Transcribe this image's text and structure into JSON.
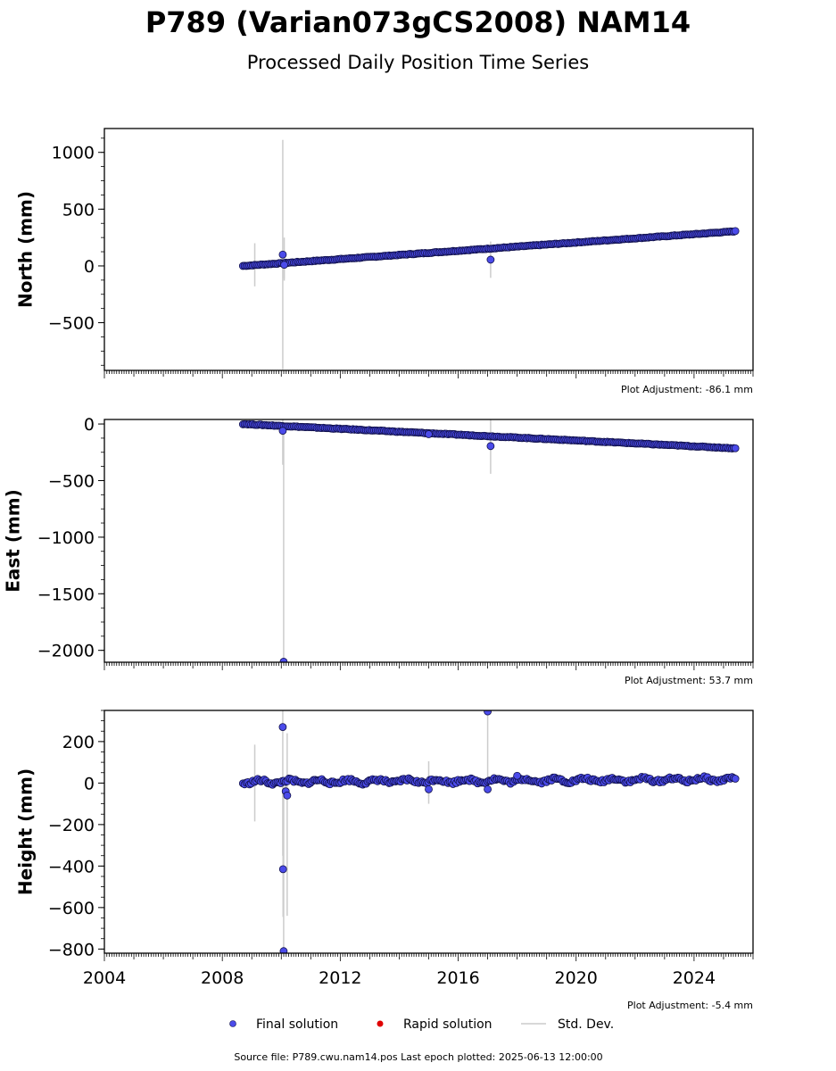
{
  "title": "P789 (Varian073gCS2008) NAM14",
  "subtitle": "Processed Daily Position Time Series",
  "source_text": "Source file: P789.cwu.nam14.pos  Last epoch plotted: 2025-06-13 12:00:00",
  "legend": {
    "final": "Final solution",
    "rapid": "Rapid solution",
    "std": "Std. Dev."
  },
  "colors": {
    "final_fill": "#4b4bea",
    "final_edge": "#10104a",
    "rapid": "#e00000",
    "stddev": "#cccccc"
  },
  "chart_data": [
    {
      "type": "scatter",
      "ylabel": "North (mm)",
      "adjustment": "Plot Adjustment: -86.1 mm",
      "xlim": [
        2004,
        2026
      ],
      "ylim": [
        -920,
        1210
      ],
      "yticks": [
        1000,
        500,
        0,
        -500
      ],
      "ytick_labels": [
        "1000",
        "500",
        "0",
        "−500"
      ],
      "trend": {
        "x": [
          2008.7,
          2025.4
        ],
        "y": [
          0,
          305
        ]
      },
      "outliers": [
        {
          "x": 2010.05,
          "y": 100,
          "err": 1010
        },
        {
          "x": 2010.1,
          "y": 10,
          "err": 120
        },
        {
          "x": 2017.1,
          "y": 55,
          "err": 160
        }
      ],
      "stddev_bars": [
        {
          "x": 2009.1,
          "y": 10,
          "err": 190
        },
        {
          "x": 2010.1,
          "y": 60,
          "err": 190
        }
      ]
    },
    {
      "type": "scatter",
      "ylabel": "East (mm)",
      "adjustment": "Plot Adjustment: 53.7 mm",
      "xlim": [
        2004,
        2026
      ],
      "ylim": [
        -2105,
        40
      ],
      "yticks": [
        0,
        -500,
        -1000,
        -1500,
        -2000
      ],
      "ytick_labels": [
        "0",
        "−500",
        "−1000",
        "−1500",
        "−2000"
      ],
      "trend": {
        "x": [
          2008.7,
          2025.4
        ],
        "y": [
          0,
          -215
        ]
      },
      "outliers": [
        {
          "x": 2010.05,
          "y": -60,
          "err": 300
        },
        {
          "x": 2010.08,
          "y": -2100,
          "err": 2100
        },
        {
          "x": 2015.0,
          "y": -90,
          "err": 20
        },
        {
          "x": 2017.1,
          "y": -195,
          "err": 245
        }
      ],
      "stddev_bars": []
    },
    {
      "type": "scatter",
      "ylabel": "Height (mm)",
      "adjustment": "Plot Adjustment: -5.4 mm",
      "xlim": [
        2004,
        2026
      ],
      "ylim": [
        -820,
        350
      ],
      "yticks": [
        200,
        0,
        -200,
        -400,
        -600,
        -800
      ],
      "ytick_labels": [
        "200",
        "0",
        "−200",
        "−400",
        "−600",
        "−800"
      ],
      "xticks": [
        2004,
        2008,
        2012,
        2016,
        2020,
        2024
      ],
      "xtick_labels": [
        "2004",
        "2008",
        "2012",
        "2016",
        "2020",
        "2024"
      ],
      "trend": {
        "x": [
          2008.7,
          2025.4
        ],
        "y": [
          5,
          18
        ]
      },
      "outliers": [
        {
          "x": 2010.05,
          "y": 270,
          "err": 620
        },
        {
          "x": 2010.06,
          "y": -415,
          "err": 230
        },
        {
          "x": 2010.08,
          "y": -810,
          "err": 820
        },
        {
          "x": 2010.15,
          "y": -40,
          "err": 30
        },
        {
          "x": 2010.2,
          "y": -60,
          "err": 25
        },
        {
          "x": 2015.0,
          "y": -30,
          "err": 70
        },
        {
          "x": 2017.0,
          "y": 345,
          "err": 380
        },
        {
          "x": 2017.0,
          "y": -30,
          "err": 20
        },
        {
          "x": 2018.0,
          "y": 35,
          "err": 10
        }
      ],
      "stddev_bars": [
        {
          "x": 2009.1,
          "y": 0,
          "err": 185
        },
        {
          "x": 2010.2,
          "y": -200,
          "err": 440
        },
        {
          "x": 2015.0,
          "y": 20,
          "err": 85
        }
      ]
    }
  ]
}
